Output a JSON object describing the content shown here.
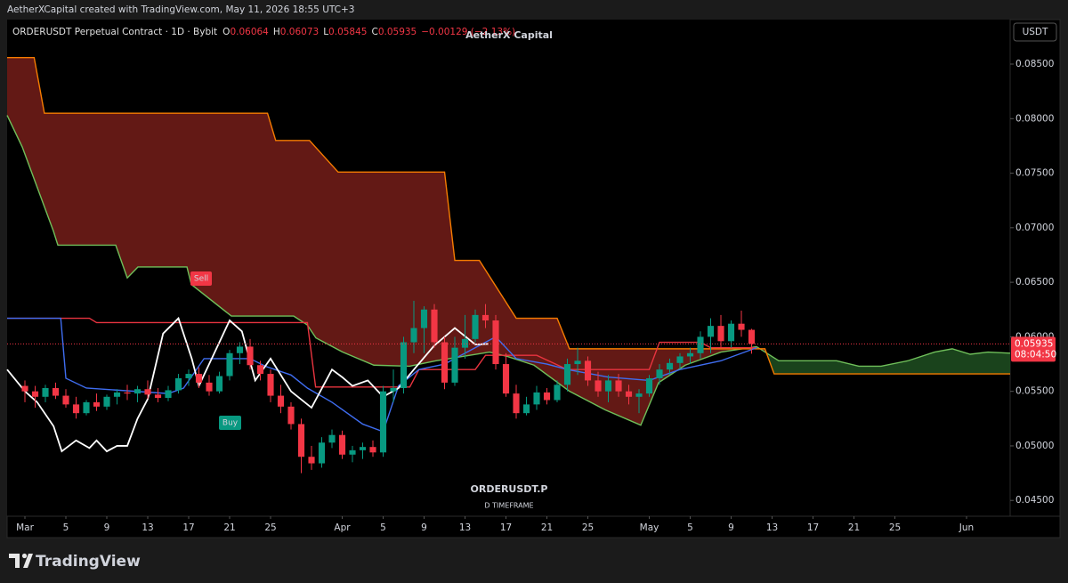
{
  "page_title": "AetherXCapital created with TradingView.com, May 11, 2026 18:55 UTC+3",
  "brand": "TradingView",
  "chart_data": {
    "type": "candlestick",
    "title": "ORDERUSDT Perpetual Contract · 1D · Bybit",
    "header_ohlc": [
      {
        "label": "O",
        "value": "0.06064"
      },
      {
        "label": "H",
        "value": "0.06073"
      },
      {
        "label": "L",
        "value": "0.05845"
      },
      {
        "label": "C",
        "value": "0.05935"
      }
    ],
    "change": "−0.00129 (−2.13%)",
    "watermark": "AetherX Capital",
    "symbol": "ORDERUSDT.P",
    "timeframe": "D TIMEFRAME",
    "currency": "USDT",
    "signals": [
      {
        "label": "Sell",
        "color": "#f23645"
      },
      {
        "label": "Buy",
        "color": "#089981"
      }
    ],
    "last_price": 0.05935,
    "countdown": "08:04:50",
    "up_color": "#089981",
    "down_color": "#f23645",
    "grid": false,
    "xlim": [
      -1.74,
      96.26
    ],
    "xticks": [
      {
        "value": 0,
        "label": "Mar"
      },
      {
        "value": 4,
        "label": "5"
      },
      {
        "value": 8,
        "label": "9"
      },
      {
        "value": 12,
        "label": "13"
      },
      {
        "value": 16,
        "label": "17"
      },
      {
        "value": 20,
        "label": "21"
      },
      {
        "value": 24,
        "label": "25"
      },
      {
        "value": 31,
        "label": "Apr"
      },
      {
        "value": 35,
        "label": "5"
      },
      {
        "value": 39,
        "label": "9"
      },
      {
        "value": 43,
        "label": "13"
      },
      {
        "value": 47,
        "label": "17"
      },
      {
        "value": 51,
        "label": "21"
      },
      {
        "value": 55,
        "label": "25"
      },
      {
        "value": 61,
        "label": "May"
      },
      {
        "value": 65,
        "label": "5"
      },
      {
        "value": 69,
        "label": "9"
      },
      {
        "value": 73,
        "label": "13"
      },
      {
        "value": 77,
        "label": "17"
      },
      {
        "value": 81,
        "label": "21"
      },
      {
        "value": 85,
        "label": "25"
      },
      {
        "value": 92,
        "label": "Jun"
      }
    ],
    "ylim": [
      0.04355,
      0.08908
    ],
    "yticks": [
      {
        "value": 0.045,
        "label": "0.04500"
      },
      {
        "value": 0.05,
        "label": "0.05000"
      },
      {
        "value": 0.055,
        "label": "0.05500"
      },
      {
        "value": 0.06,
        "label": "0.06000"
      },
      {
        "value": 0.065,
        "label": "0.06500"
      },
      {
        "value": 0.07,
        "label": "0.07000"
      },
      {
        "value": 0.075,
        "label": "0.07500"
      },
      {
        "value": 0.08,
        "label": "0.08000"
      },
      {
        "value": 0.085,
        "label": "0.08500"
      }
    ],
    "x": [
      0,
      1,
      2,
      3,
      4,
      5,
      6,
      7,
      8,
      9,
      10,
      11,
      12,
      13,
      14,
      15,
      16,
      17,
      18,
      19,
      20,
      21,
      22,
      23,
      24,
      25,
      26,
      27,
      28,
      29,
      30,
      31,
      32,
      33,
      34,
      35,
      36,
      37,
      38,
      39,
      40,
      41,
      42,
      43,
      44,
      45,
      46,
      47,
      48,
      49,
      50,
      51,
      52,
      53,
      54,
      55,
      56,
      57,
      58,
      59,
      60,
      61,
      62,
      63,
      64,
      65,
      66,
      67,
      68,
      69,
      70,
      71
    ],
    "open": [
      0.0555,
      0.055,
      0.0545,
      0.0553,
      0.0546,
      0.0538,
      0.053,
      0.054,
      0.0536,
      0.0545,
      0.0549,
      0.0548,
      0.0552,
      0.0547,
      0.0544,
      0.0551,
      0.0562,
      0.0566,
      0.0558,
      0.055,
      0.0564,
      0.0585,
      0.0591,
      0.0574,
      0.0566,
      0.0546,
      0.0536,
      0.052,
      0.049,
      0.0484,
      0.0503,
      0.051,
      0.0492,
      0.0496,
      0.0499,
      0.0494,
      0.055,
      0.0553,
      0.0595,
      0.0608,
      0.0625,
      0.0595,
      0.0558,
      0.059,
      0.0598,
      0.062,
      0.0615,
      0.0575,
      0.0548,
      0.053,
      0.0538,
      0.0549,
      0.0542,
      0.0556,
      0.0575,
      0.0578,
      0.056,
      0.055,
      0.056,
      0.055,
      0.0545,
      0.0548,
      0.0562,
      0.057,
      0.0576,
      0.0582,
      0.0585,
      0.06,
      0.061,
      0.0596,
      0.0612,
      0.06064
    ],
    "high": [
      0.056,
      0.0555,
      0.0556,
      0.0558,
      0.0552,
      0.0545,
      0.0542,
      0.0548,
      0.0547,
      0.0552,
      0.0556,
      0.0555,
      0.056,
      0.0553,
      0.0555,
      0.0566,
      0.057,
      0.0572,
      0.0565,
      0.0568,
      0.0588,
      0.0595,
      0.0598,
      0.0578,
      0.057,
      0.0556,
      0.054,
      0.0525,
      0.05,
      0.0508,
      0.0515,
      0.0514,
      0.05,
      0.0503,
      0.0505,
      0.0555,
      0.057,
      0.06,
      0.0633,
      0.0628,
      0.063,
      0.06,
      0.06,
      0.062,
      0.0625,
      0.063,
      0.062,
      0.0585,
      0.0556,
      0.0545,
      0.0555,
      0.0553,
      0.056,
      0.058,
      0.059,
      0.0582,
      0.0568,
      0.0565,
      0.0566,
      0.0556,
      0.0552,
      0.0565,
      0.0575,
      0.058,
      0.0585,
      0.059,
      0.0605,
      0.0617,
      0.062,
      0.0615,
      0.0624,
      0.06073
    ],
    "low": [
      0.054,
      0.0535,
      0.054,
      0.0543,
      0.0535,
      0.0525,
      0.0528,
      0.0532,
      0.0533,
      0.0538,
      0.0542,
      0.054,
      0.0543,
      0.054,
      0.0541,
      0.0548,
      0.0555,
      0.0553,
      0.0546,
      0.0548,
      0.056,
      0.0575,
      0.057,
      0.056,
      0.054,
      0.053,
      0.0515,
      0.0475,
      0.0478,
      0.048,
      0.0498,
      0.0488,
      0.0485,
      0.0488,
      0.049,
      0.049,
      0.054,
      0.0548,
      0.0585,
      0.0585,
      0.059,
      0.0552,
      0.0555,
      0.058,
      0.0595,
      0.0608,
      0.057,
      0.0545,
      0.0525,
      0.0528,
      0.0533,
      0.0538,
      0.054,
      0.055,
      0.0565,
      0.0555,
      0.0545,
      0.054,
      0.0545,
      0.0538,
      0.053,
      0.0545,
      0.0556,
      0.0565,
      0.057,
      0.0575,
      0.058,
      0.0585,
      0.059,
      0.059,
      0.06,
      0.05845
    ],
    "close": [
      0.055,
      0.0545,
      0.0553,
      0.0546,
      0.0538,
      0.053,
      0.054,
      0.0536,
      0.0545,
      0.0549,
      0.0548,
      0.0552,
      0.0547,
      0.0544,
      0.0551,
      0.0562,
      0.0566,
      0.0558,
      0.055,
      0.0564,
      0.0585,
      0.0591,
      0.0574,
      0.0566,
      0.0546,
      0.0536,
      0.052,
      0.049,
      0.0484,
      0.0503,
      0.051,
      0.0492,
      0.0496,
      0.0499,
      0.0494,
      0.055,
      0.0553,
      0.0595,
      0.0608,
      0.0625,
      0.0595,
      0.0558,
      0.059,
      0.0598,
      0.062,
      0.0615,
      0.0575,
      0.0548,
      0.053,
      0.0538,
      0.0549,
      0.0542,
      0.0556,
      0.0575,
      0.0578,
      0.056,
      0.055,
      0.056,
      0.055,
      0.0545,
      0.0548,
      0.0562,
      0.057,
      0.0576,
      0.0582,
      0.0585,
      0.06,
      0.061,
      0.0596,
      0.0612,
      0.06064,
      0.05935
    ],
    "cloud_colors": {
      "bearish": "#6e1c17",
      "bullish": "#1d4a1f"
    },
    "overlays": [
      {
        "color": "#6fbf5a",
        "x": [
          -1.74,
          -0.26,
          2.78,
          3.22,
          8.87,
          10,
          11.04,
          15.83,
          16.26,
          20.17,
          26.26,
          27.57,
          28.43,
          31.04,
          34.09,
          37.57,
          40.17,
          42.78,
          45.39,
          47.13,
          49.74,
          53.22,
          56.7,
          60.17,
          61.91,
          64.52,
          68,
          71.48,
          73.65,
          79.3,
          81.48,
          83.65,
          86.26,
          88.87,
          90.6,
          92.35,
          94.09,
          96.26
        ],
        "values": [
          0.0803,
          0.0774,
          0.0697,
          0.0684,
          0.0684,
          0.0654,
          0.0664,
          0.0664,
          0.0648,
          0.0619,
          0.0619,
          0.0611,
          0.0599,
          0.0586,
          0.0574,
          0.0573,
          0.0578,
          0.0582,
          0.0586,
          0.0582,
          0.0574,
          0.055,
          0.0533,
          0.0519,
          0.0558,
          0.0574,
          0.0586,
          0.0591,
          0.0578,
          0.0578,
          0.0573,
          0.0573,
          0.0578,
          0.0586,
          0.0589,
          0.0584,
          0.0586,
          0.0585
        ]
      },
      {
        "color": "#f57c00",
        "x": [
          -1.74,
          0.9,
          1.9,
          23.7,
          24.5,
          27.8,
          30.6,
          41,
          42,
          44.4,
          48,
          52,
          53.2,
          72.3,
          73.2,
          96.26
        ],
        "values": [
          0.0856,
          0.0856,
          0.0805,
          0.0805,
          0.078,
          0.078,
          0.0751,
          0.0751,
          0.067,
          0.067,
          0.0617,
          0.0617,
          0.0589,
          0.0589,
          0.0566,
          0.0566
        ]
      },
      {
        "color": "#e8343f",
        "x": [
          -1.74,
          6.3,
          7,
          27.6,
          28.4,
          37.6,
          38.5,
          44,
          45,
          50,
          53,
          61,
          62,
          66,
          67,
          71.5
        ],
        "values": [
          0.0617,
          0.0617,
          0.0613,
          0.0613,
          0.0554,
          0.0554,
          0.057,
          0.057,
          0.0583,
          0.0583,
          0.057,
          0.057,
          0.0595,
          0.0595,
          0.059,
          0.059
        ]
      },
      {
        "color": "#3f6df0",
        "x": [
          -1.74,
          3.5,
          4,
          6,
          14,
          15.5,
          17.5,
          22,
          23.5,
          26,
          27.6,
          30,
          33,
          35,
          36.5,
          38.5,
          41,
          44,
          46,
          48,
          51,
          53,
          57,
          61,
          64,
          68,
          71.5
        ],
        "values": [
          0.0617,
          0.0617,
          0.0562,
          0.0553,
          0.0548,
          0.0553,
          0.058,
          0.058,
          0.0573,
          0.0565,
          0.0553,
          0.054,
          0.052,
          0.0513,
          0.0555,
          0.057,
          0.0575,
          0.059,
          0.06,
          0.058,
          0.0575,
          0.057,
          0.0563,
          0.056,
          0.057,
          0.0578,
          0.059
        ]
      },
      {
        "color": "#ffffff",
        "x": [
          -1.74,
          0,
          1.2,
          2.8,
          3.6,
          5,
          6.3,
          7,
          8,
          9,
          10,
          11,
          12,
          13.5,
          15,
          16.3,
          17,
          18.5,
          20,
          21.2,
          22.5,
          24,
          26,
          28,
          30,
          31,
          32,
          33.5,
          35,
          36.5,
          38,
          40,
          42,
          44,
          45.3
        ],
        "values": [
          0.057,
          0.055,
          0.054,
          0.0518,
          0.0495,
          0.0505,
          0.0498,
          0.0505,
          0.0495,
          0.05,
          0.05,
          0.0525,
          0.0543,
          0.0603,
          0.0617,
          0.058,
          0.0555,
          0.0585,
          0.0615,
          0.0605,
          0.056,
          0.058,
          0.055,
          0.0535,
          0.057,
          0.0563,
          0.0555,
          0.056,
          0.0545,
          0.0553,
          0.057,
          0.0592,
          0.0608,
          0.0593,
          0.05935
        ]
      }
    ]
  }
}
